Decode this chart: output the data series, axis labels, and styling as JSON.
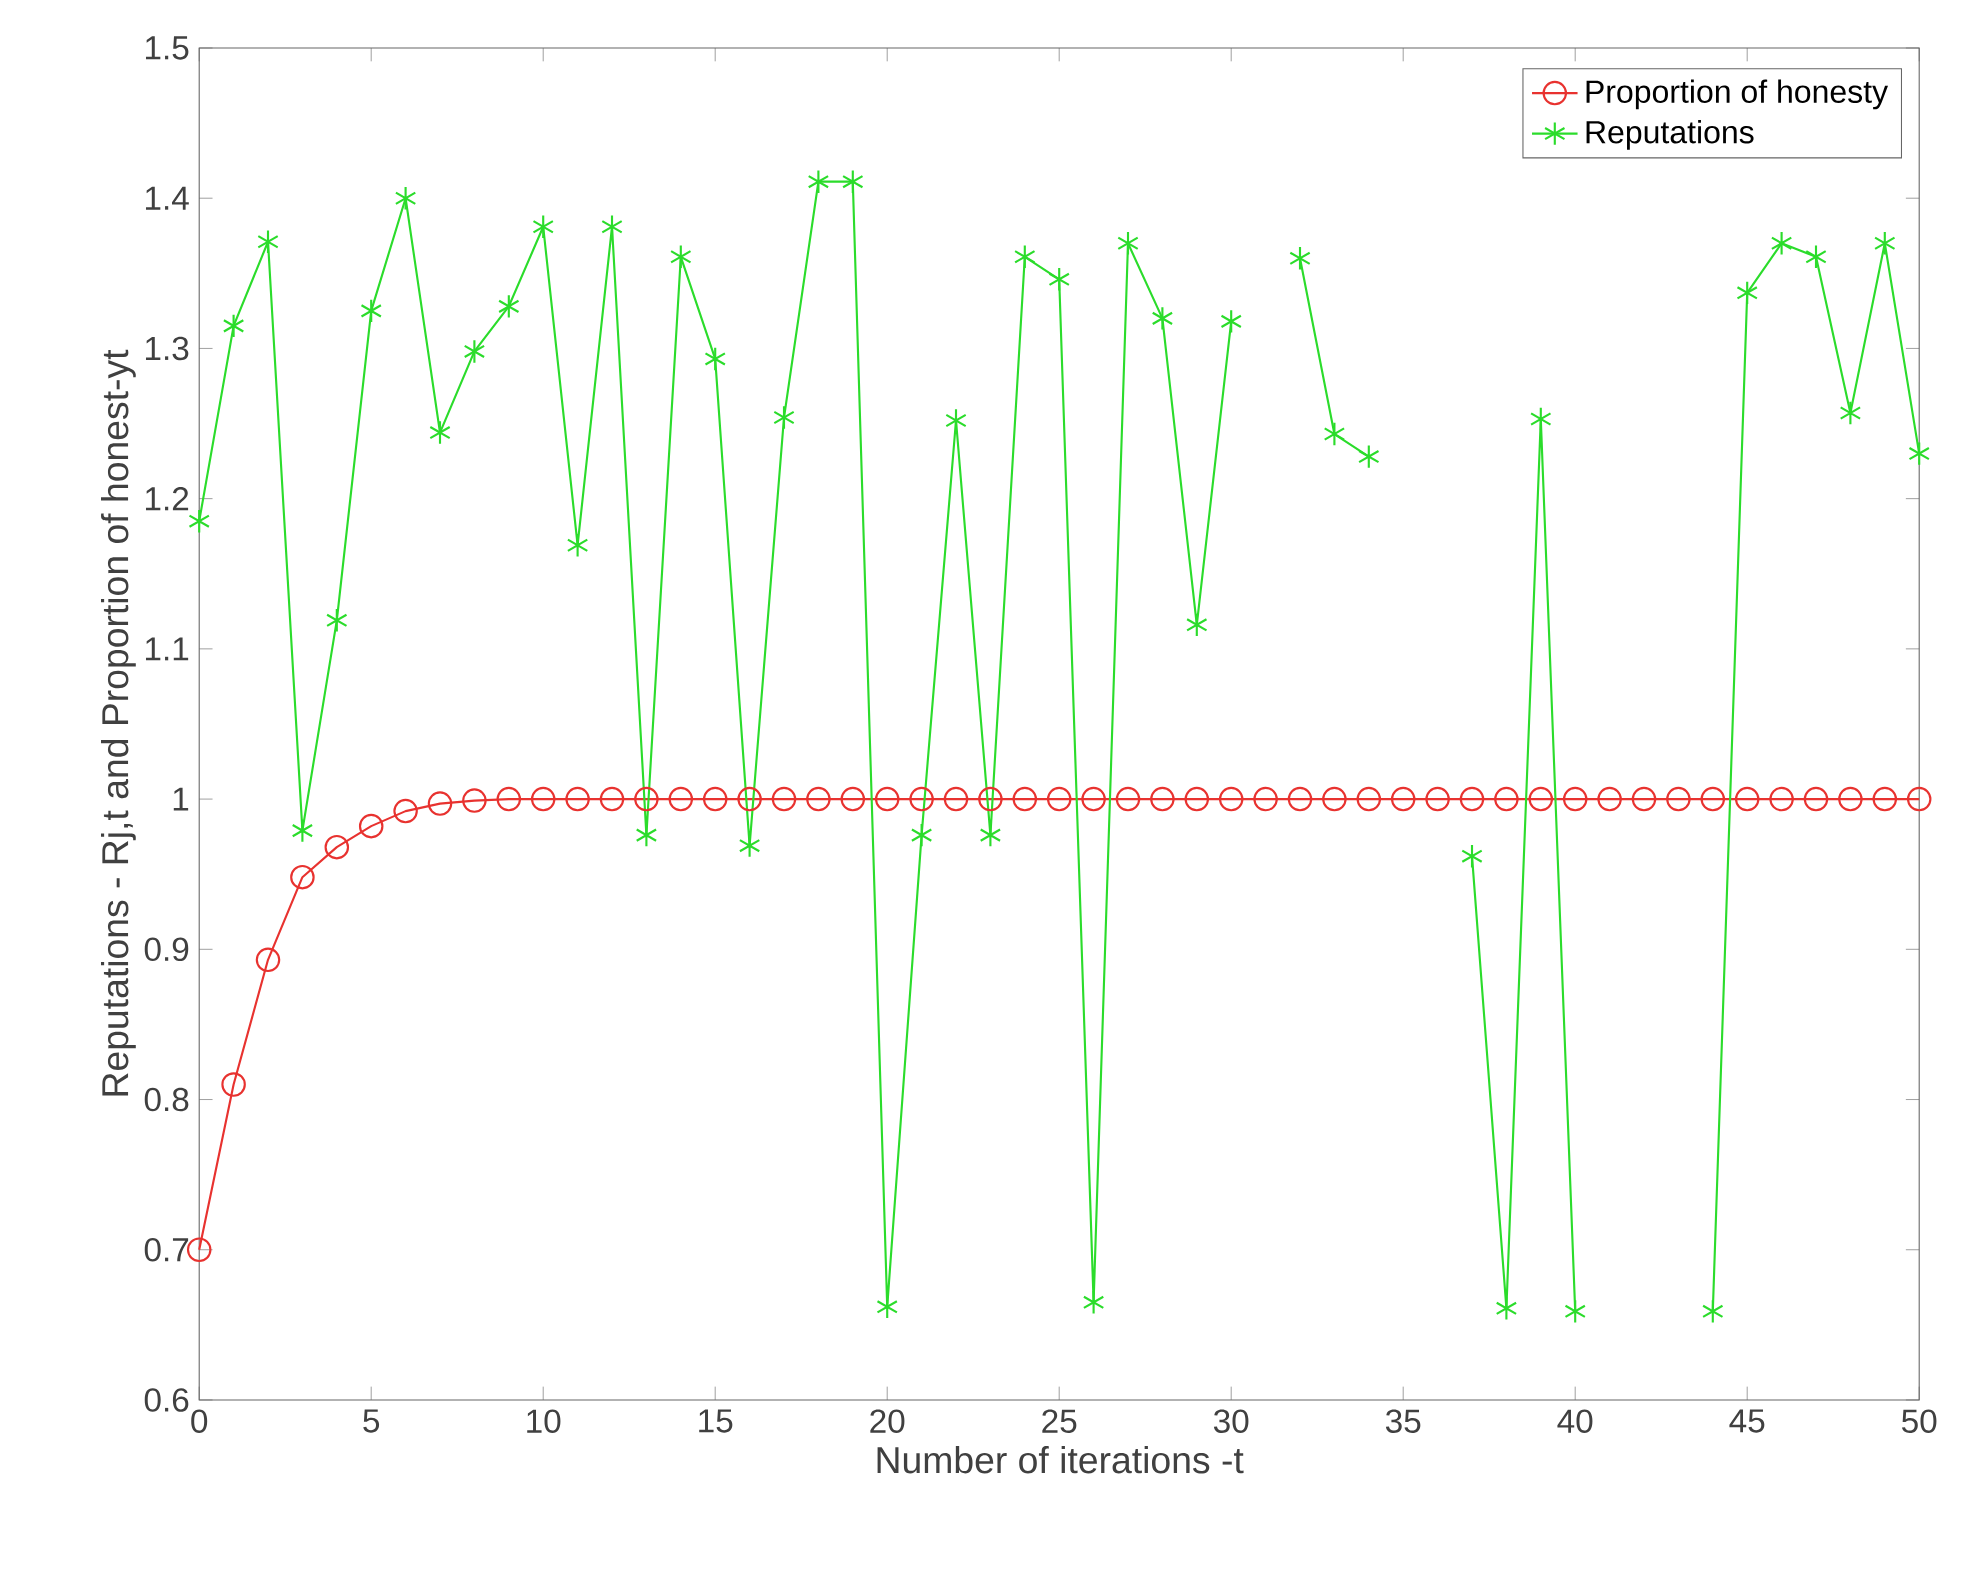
{
  "chart_data": {
    "type": "line",
    "xlabel": "Number of iterations -t",
    "ylabel": "Reputations - Rj,t and Proportion of honest-yt",
    "x": [
      0,
      1,
      2,
      3,
      4,
      5,
      6,
      7,
      8,
      9,
      10,
      11,
      12,
      13,
      14,
      15,
      16,
      17,
      18,
      19,
      20,
      21,
      22,
      23,
      24,
      25,
      26,
      27,
      28,
      29,
      30,
      31,
      32,
      33,
      34,
      35,
      36,
      37,
      38,
      39,
      40,
      41,
      42,
      43,
      44,
      45,
      46,
      47,
      48,
      49,
      50
    ],
    "series": [
      {
        "name": "Proportion of honesty",
        "color": "#e8322f",
        "marker": "circle",
        "values": [
          0.7,
          0.81,
          0.893,
          0.948,
          0.968,
          0.982,
          0.992,
          0.997,
          0.999,
          1,
          1,
          1,
          1,
          1,
          1,
          1,
          1,
          1,
          1,
          1,
          1,
          1,
          1,
          1,
          1,
          1,
          1,
          1,
          1,
          1,
          1,
          1,
          1,
          1,
          1,
          1,
          1,
          1,
          1,
          1,
          1,
          1,
          1,
          1,
          1,
          1,
          1,
          1,
          1,
          1,
          1
        ]
      },
      {
        "name": "Reputations",
        "color": "#2bdc2b",
        "marker": "cross",
        "values": [
          1.185,
          1.315,
          1.371,
          0.979,
          1.119,
          1.325,
          1.4,
          1.244,
          1.298,
          1.328,
          1.381,
          1.169,
          1.381,
          0.976,
          1.361,
          1.293,
          0.969,
          1.254,
          1.411,
          1.411,
          0.662,
          0.976,
          1.252,
          0.976,
          1.361,
          1.346,
          0.665,
          1.37,
          1.32,
          1.116,
          1.318,
          null,
          1.36,
          1.243,
          1.228,
          null,
          null,
          0.962,
          0.661,
          1.253,
          0.659,
          null,
          null,
          null,
          0.659,
          1.337,
          1.37,
          1.361,
          1.257,
          1.37,
          1.23
        ]
      }
    ],
    "xlim": [
      0,
      50
    ],
    "xticks": [
      0,
      5,
      10,
      15,
      20,
      25,
      30,
      35,
      40,
      45,
      50
    ],
    "ylim": [
      0.6,
      1.5
    ],
    "yticks": [
      0.6,
      0.7,
      0.8,
      0.9,
      1,
      1.1,
      1.2,
      1.3,
      1.4,
      1.5
    ],
    "grid": false,
    "legend": "top right",
    "line_style": "solid"
  }
}
